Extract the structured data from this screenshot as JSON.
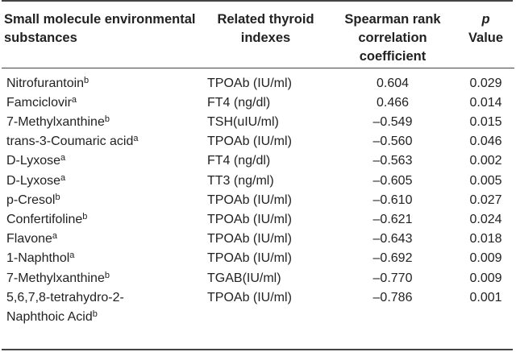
{
  "headers": {
    "substance": "Small molecule environmental substances",
    "index": "Related thyroid indexes",
    "spearman": "Spearman rank correlation coefficient",
    "p_italic": "p",
    "p_value": "Value"
  },
  "rows": [
    {
      "name": "Nitrofurantoin",
      "sup": "b",
      "index": "TPOAb (IU/ml)",
      "coef": "0.604",
      "p": "0.029"
    },
    {
      "name": "Famciclovir",
      "sup": "a",
      "index": "FT4 (ng/dl)",
      "coef": "0.466",
      "p": "0.014"
    },
    {
      "name": "7-Methylxanthine",
      "sup": "b",
      "index": "TSH(uIU/ml)",
      "coef": "–0.549",
      "p": "0.015"
    },
    {
      "name": "trans-3-Coumaric acid",
      "sup": "a",
      "index": "TPOAb (IU/ml)",
      "coef": "–0.560",
      "p": "0.046"
    },
    {
      "name": "D-Lyxose",
      "sup": "a",
      "index": "FT4 (ng/dl)",
      "coef": "–0.563",
      "p": "0.002"
    },
    {
      "name": "D-Lyxose",
      "sup": "a",
      "index": "TT3 (ng/ml)",
      "coef": "–0.605",
      "p": "0.005"
    },
    {
      "name": "p-Cresol",
      "sup": "b",
      "index": "TPOAb (IU/ml)",
      "coef": "–0.610",
      "p": "0.027"
    },
    {
      "name": "Confertifoline",
      "sup": "b",
      "index": "TPOAb (IU/ml)",
      "coef": "–0.621",
      "p": "0.024"
    },
    {
      "name": "Flavone",
      "sup": "a",
      "index": "TPOAb (IU/ml)",
      "coef": "–0.643",
      "p": "0.018"
    },
    {
      "name": "1-Naphthol",
      "sup": "a",
      "index": "TPOAb (IU/ml)",
      "coef": "–0.692",
      "p": "0.009"
    },
    {
      "name": "7-Methylxanthine",
      "sup": "b",
      "index": "TGAB(IU/ml)",
      "coef": "–0.770",
      "p": "0.009"
    },
    {
      "name": "5,6,7,8-tetrahydro-2-",
      "name2": "Naphthoic Acid",
      "sup": "b",
      "index": "TPOAb (IU/ml)",
      "coef": "–0.786",
      "p": "0.001"
    }
  ]
}
